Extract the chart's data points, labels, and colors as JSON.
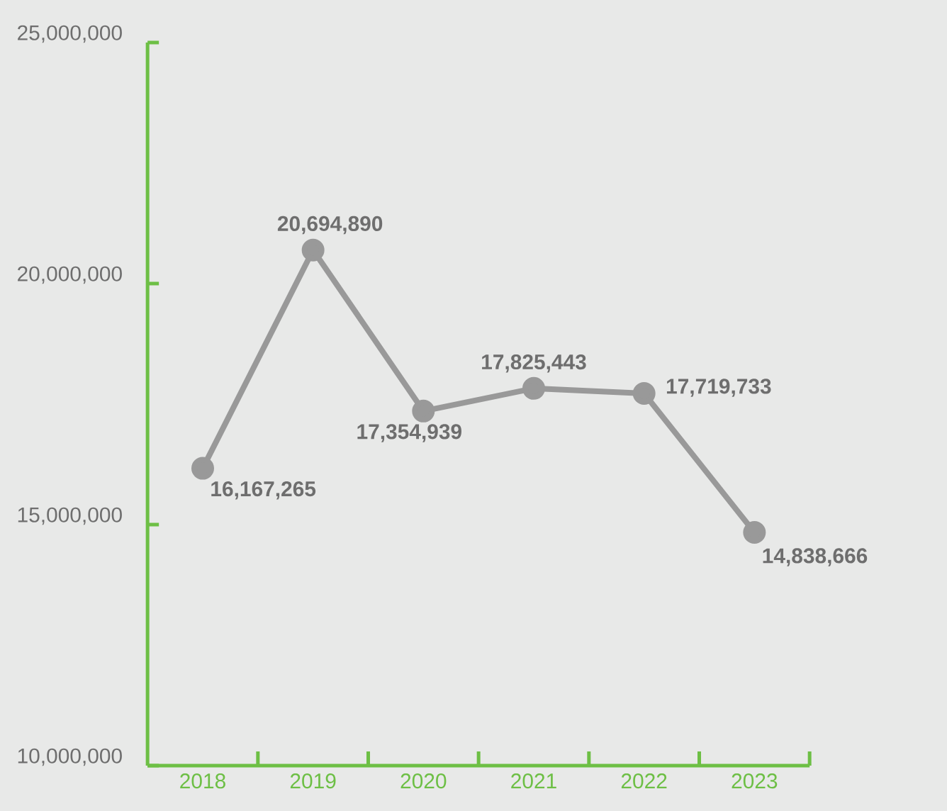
{
  "chart_data": {
    "type": "line",
    "categories": [
      "2018",
      "2019",
      "2020",
      "2021",
      "2022",
      "2023"
    ],
    "series": [
      {
        "color": "#999999",
        "values": [
          16167265,
          20694890,
          17354939,
          17825443,
          17719733,
          14838666
        ],
        "value_labels": [
          "16,167,265",
          "20,694,890",
          "17,354,939",
          "17,825,443",
          "17,719,733",
          "14,838,666"
        ]
      }
    ],
    "ylim": [
      10000000,
      25000000
    ],
    "yticks": [
      {
        "value": 10000000,
        "label": "10,000,000"
      },
      {
        "value": 15000000,
        "label": "15,000,000"
      },
      {
        "value": 20000000,
        "label": "20,000,000"
      },
      {
        "value": 25000000,
        "label": "25,000,000"
      }
    ],
    "marker": "circle",
    "line_style": "solid",
    "grid": false
  }
}
